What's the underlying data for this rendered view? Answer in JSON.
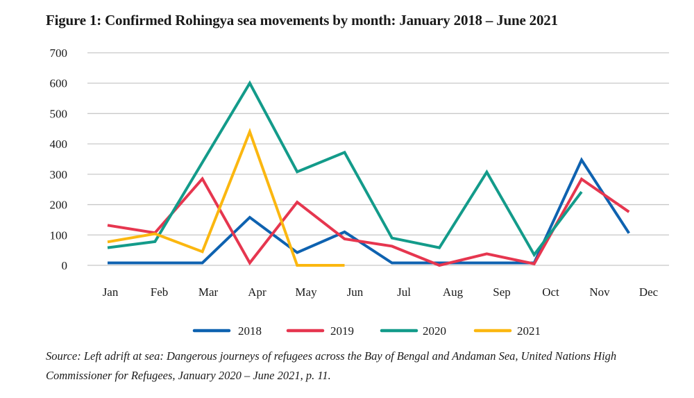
{
  "title": "Figure 1: Confirmed Rohingya sea movements by month: January 2018 – June 2021",
  "source": "Source: Left adrift at sea: Dangerous journeys of refugees across the Bay of Bengal and Andaman Sea, United Nations High Commissioner for Refugees, January 2020 – June 2021, p. 11.",
  "chart_data": {
    "type": "line",
    "title": "Figure 1: Confirmed Rohingya sea movements by month: January 2018 – June 2021",
    "xlabel": "",
    "ylabel": "",
    "categories": [
      "Jan",
      "Feb",
      "Mar",
      "Apr",
      "May",
      "Jun",
      "Jul",
      "Aug",
      "Sep",
      "Oct",
      "Nov",
      "Dec"
    ],
    "ylim": [
      0,
      700
    ],
    "yticks": [
      0,
      100,
      200,
      300,
      400,
      500,
      600,
      700
    ],
    "grid": true,
    "legend_position": "bottom",
    "series": [
      {
        "name": "2018",
        "color": "#0e62b0",
        "values": [
          8,
          8,
          8,
          158,
          42,
          110,
          8,
          8,
          8,
          8,
          347,
          106
        ]
      },
      {
        "name": "2019",
        "color": "#e6364f",
        "values": [
          132,
          107,
          285,
          8,
          208,
          87,
          63,
          0,
          38,
          5,
          284,
          176
        ]
      },
      {
        "name": "2020",
        "color": "#139b8a",
        "values": [
          58,
          78,
          null,
          600,
          308,
          372,
          90,
          58,
          307,
          35,
          242,
          null
        ]
      },
      {
        "name": "2021",
        "color": "#fbb710",
        "values": [
          77,
          104,
          45,
          440,
          0,
          0,
          null,
          null,
          null,
          null,
          null,
          null
        ]
      }
    ]
  }
}
